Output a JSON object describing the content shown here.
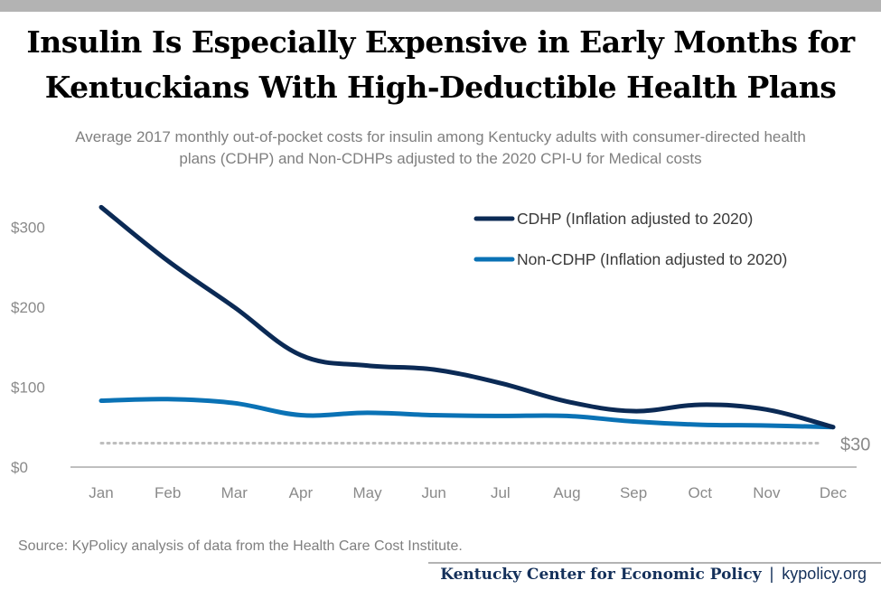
{
  "header": {
    "title_line1": "Insulin Is Especially Expensive in Early Months for",
    "title_line2": "Kentuckians With High-Deductible Health Plans",
    "subtitle_line1": "Average 2017 monthly out-of-pocket costs for insulin among Kentucky adults with consumer-directed health",
    "subtitle_line2": "plans (CDHP) and Non-CDHPs adjusted to the 2020 CPI-U for Medical costs"
  },
  "chart_data": {
    "type": "line",
    "categories": [
      "Jan",
      "Feb",
      "Mar",
      "Apr",
      "May",
      "Jun",
      "Jul",
      "Aug",
      "Sep",
      "Oct",
      "Nov",
      "Dec"
    ],
    "series": [
      {
        "name": "CDHP (Inflation adjusted to 2020)",
        "color": "#0b2a55",
        "values": [
          325,
          258,
          200,
          140,
          127,
          122,
          105,
          82,
          70,
          78,
          72,
          50
        ]
      },
      {
        "name": "Non-CDHP (Inflation adjusted to 2020)",
        "color": "#0a72b5",
        "values": [
          83,
          85,
          80,
          65,
          68,
          65,
          64,
          64,
          57,
          53,
          52,
          50
        ]
      }
    ],
    "reference_line": {
      "value": 30,
      "label": "$30",
      "color": "#bdbdbd",
      "style": "dotted"
    },
    "y_ticks": [
      {
        "value": 0,
        "label": "$0"
      },
      {
        "value": 100,
        "label": "$100"
      },
      {
        "value": 200,
        "label": "$200"
      },
      {
        "value": 300,
        "label": "$300"
      }
    ],
    "ylim": [
      0,
      340
    ],
    "grid": false,
    "legend_position": "top-right"
  },
  "footer": {
    "source": "Source: KyPolicy analysis of data from the Health Care Cost Institute.",
    "org": "Kentucky Center for Economic Policy",
    "separator": "|",
    "site": "kypolicy.org"
  }
}
